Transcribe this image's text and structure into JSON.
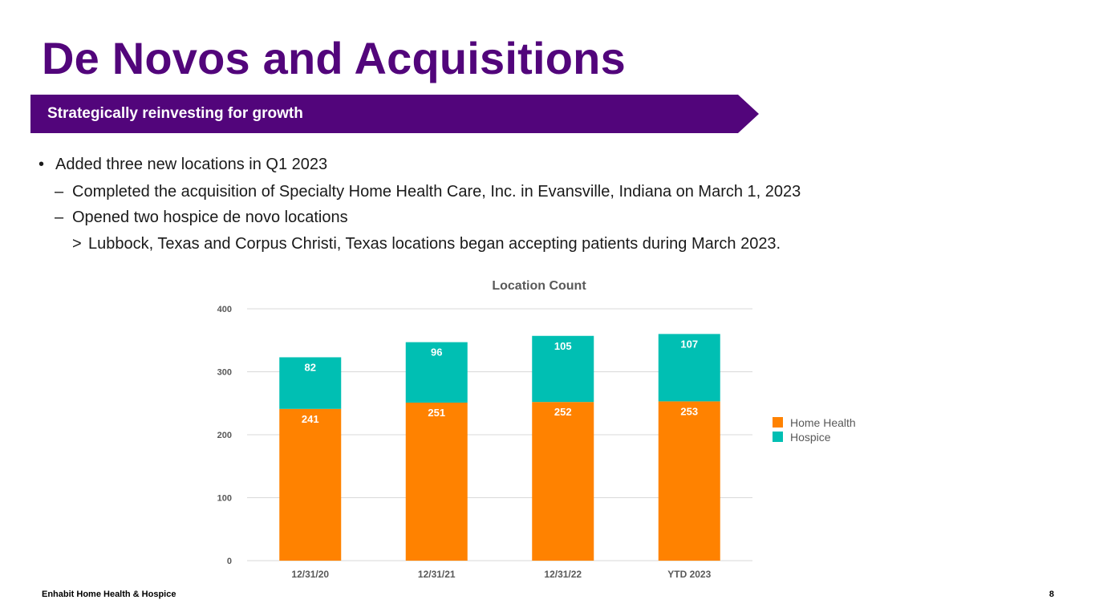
{
  "slide": {
    "title": "De Novos and Acquisitions",
    "subtitle": "Strategically reinvesting for growth",
    "bullets": [
      {
        "marker": "•",
        "text": "Added three new locations in Q1 2023"
      },
      {
        "marker": "–",
        "text": "Completed the acquisition of Specialty Home Health Care, Inc. in Evansville, Indiana on March 1, 2023"
      },
      {
        "marker": "–",
        "text": "Opened two hospice de novo locations"
      },
      {
        "marker": ">",
        "text": "Lubbock, Texas and Corpus Christi, Texas locations began accepting patients during March 2023."
      }
    ],
    "footer_left": "Enhabit Home Health & Hospice",
    "page_number": "8"
  },
  "colors": {
    "brand_purple": "#52057b",
    "home_health": "#ff8200",
    "hospice": "#00bfb3"
  },
  "chart_data": {
    "type": "bar",
    "stacked": true,
    "title": "Location Count",
    "categories": [
      "12/31/20",
      "12/31/21",
      "12/31/22",
      "YTD 2023"
    ],
    "series": [
      {
        "name": "Home Health",
        "values": [
          241,
          251,
          252,
          253
        ],
        "color": "#ff8200"
      },
      {
        "name": "Hospice",
        "values": [
          82,
          96,
          105,
          107
        ],
        "color": "#00bfb3"
      }
    ],
    "ylim": [
      0,
      400
    ],
    "yticks": [
      0,
      100,
      200,
      300,
      400
    ],
    "grid": true,
    "legend": "right",
    "xlabel": "",
    "ylabel": ""
  }
}
